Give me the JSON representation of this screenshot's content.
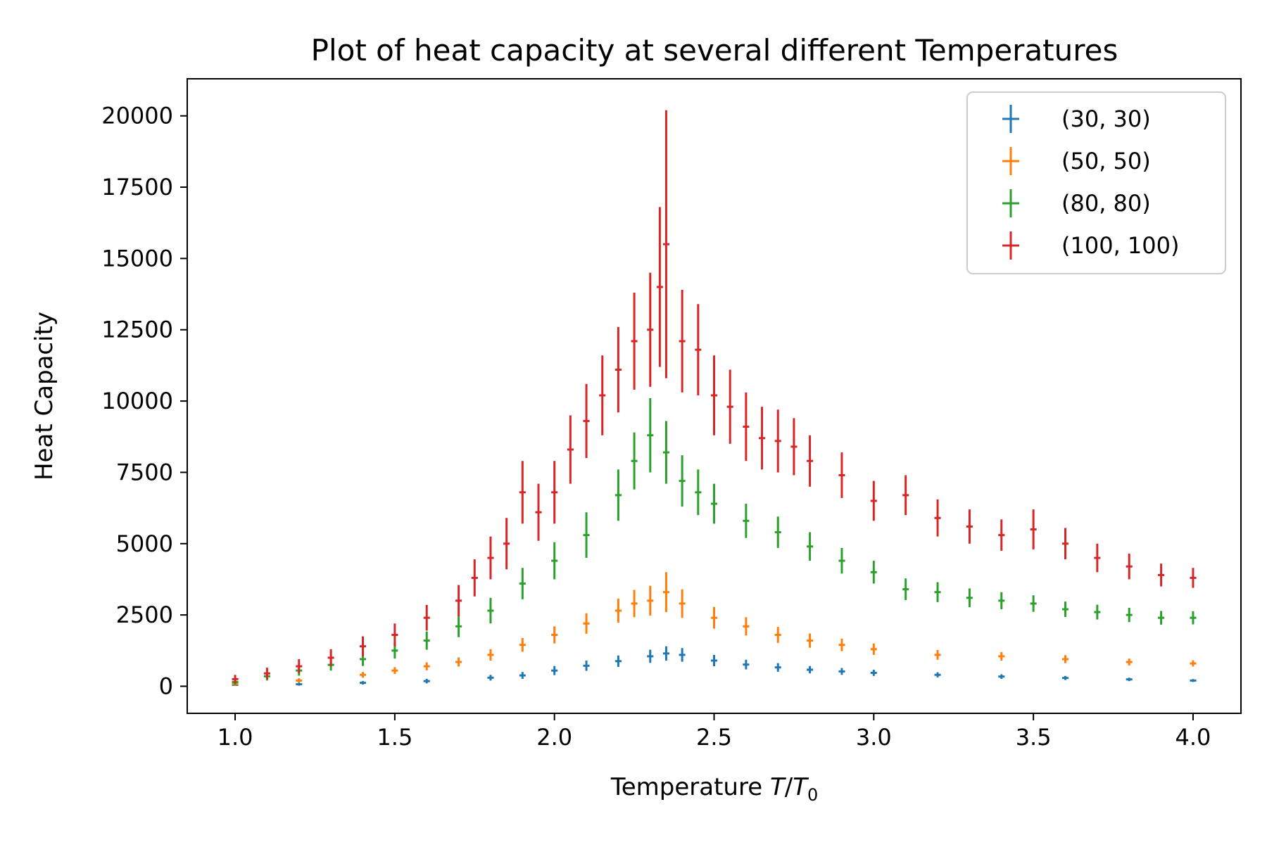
{
  "chart_data": {
    "type": "scatter",
    "title": "Plot of heat capacity at several different Temperatures",
    "xlabel": "Temperature T/T0",
    "xlabel_parts": {
      "prefix": "Temperature ",
      "num": "T",
      "slash": "/",
      "den": "T",
      "sub": "0"
    },
    "ylabel": "Heat Capacity",
    "xlim": [
      0.85,
      4.15
    ],
    "ylim": [
      -950,
      21300
    ],
    "x_ticks": [
      1.0,
      1.5,
      2.0,
      2.5,
      3.0,
      3.5,
      4.0
    ],
    "x_tick_labels": [
      "1.0",
      "1.5",
      "2.0",
      "2.5",
      "3.0",
      "3.5",
      "4.0"
    ],
    "y_ticks": [
      0,
      2500,
      5000,
      7500,
      10000,
      12500,
      15000,
      17500,
      20000
    ],
    "y_tick_labels": [
      "0",
      "2500",
      "5000",
      "7500",
      "10000",
      "12500",
      "15000",
      "17500",
      "20000"
    ],
    "grid": false,
    "legend_position": "top-right",
    "markers": "errorbar",
    "x_error": 0.01,
    "series": [
      {
        "name": "(30, 30)",
        "color": "#1f77b4",
        "x": [
          1.0,
          1.2,
          1.4,
          1.6,
          1.8,
          1.9,
          2.0,
          2.1,
          2.2,
          2.3,
          2.35,
          2.4,
          2.5,
          2.6,
          2.7,
          2.8,
          2.9,
          3.0,
          3.2,
          3.4,
          3.6,
          3.8,
          4.0
        ],
        "y": [
          50,
          70,
          120,
          180,
          300,
          380,
          550,
          720,
          880,
          1050,
          1150,
          1100,
          900,
          760,
          660,
          580,
          520,
          470,
          400,
          340,
          290,
          240,
          200
        ],
        "yerr": [
          40,
          50,
          60,
          80,
          100,
          120,
          160,
          180,
          200,
          230,
          250,
          240,
          200,
          170,
          150,
          130,
          120,
          110,
          90,
          80,
          70,
          60,
          50
        ]
      },
      {
        "name": "(50, 50)",
        "color": "#ff7f0e",
        "x": [
          1.0,
          1.2,
          1.4,
          1.5,
          1.6,
          1.7,
          1.8,
          1.9,
          2.0,
          2.1,
          2.2,
          2.25,
          2.3,
          2.35,
          2.4,
          2.5,
          2.6,
          2.7,
          2.8,
          2.9,
          3.0,
          3.2,
          3.4,
          3.6,
          3.8,
          4.0
        ],
        "y": [
          80,
          200,
          400,
          550,
          700,
          850,
          1100,
          1450,
          1800,
          2200,
          2650,
          2900,
          3000,
          3300,
          2900,
          2400,
          2100,
          1800,
          1600,
          1450,
          1300,
          1100,
          1050,
          950,
          850,
          800
        ],
        "yerr": [
          60,
          80,
          100,
          120,
          140,
          160,
          200,
          240,
          300,
          360,
          420,
          480,
          520,
          700,
          500,
          380,
          320,
          280,
          250,
          220,
          200,
          170,
          150,
          140,
          120,
          110
        ]
      },
      {
        "name": "(80, 80)",
        "color": "#2ca02c",
        "x": [
          1.0,
          1.1,
          1.2,
          1.3,
          1.4,
          1.5,
          1.6,
          1.7,
          1.8,
          1.9,
          2.0,
          2.1,
          2.2,
          2.25,
          2.3,
          2.35,
          2.4,
          2.45,
          2.5,
          2.6,
          2.7,
          2.8,
          2.9,
          3.0,
          3.1,
          3.2,
          3.3,
          3.4,
          3.5,
          3.6,
          3.7,
          3.8,
          3.9,
          4.0
        ],
        "y": [
          150,
          350,
          550,
          750,
          950,
          1250,
          1600,
          2100,
          2650,
          3600,
          4400,
          5300,
          6700,
          7900,
          8800,
          8200,
          7200,
          6800,
          6400,
          5800,
          5400,
          4900,
          4400,
          4000,
          3400,
          3300,
          3100,
          3000,
          2900,
          2700,
          2600,
          2500,
          2400,
          2400
        ],
        "yerr": [
          100,
          150,
          180,
          200,
          240,
          280,
          320,
          380,
          450,
          550,
          650,
          800,
          900,
          1000,
          1300,
          1100,
          900,
          800,
          700,
          600,
          550,
          500,
          450,
          400,
          380,
          350,
          330,
          300,
          290,
          270,
          260,
          250,
          240,
          230
        ]
      },
      {
        "name": "(100, 100)",
        "color": "#d62728",
        "x": [
          1.0,
          1.1,
          1.2,
          1.3,
          1.4,
          1.5,
          1.6,
          1.7,
          1.75,
          1.8,
          1.85,
          1.9,
          1.95,
          2.0,
          2.05,
          2.1,
          2.15,
          2.2,
          2.25,
          2.3,
          2.33,
          2.35,
          2.4,
          2.45,
          2.5,
          2.55,
          2.6,
          2.65,
          2.7,
          2.75,
          2.8,
          2.9,
          3.0,
          3.1,
          3.2,
          3.3,
          3.4,
          3.5,
          3.6,
          3.7,
          3.8,
          3.9,
          4.0
        ],
        "y": [
          250,
          450,
          700,
          1000,
          1400,
          1800,
          2400,
          3000,
          3800,
          4500,
          5000,
          6800,
          6100,
          6800,
          8300,
          9300,
          10200,
          11100,
          12100,
          12500,
          14000,
          15500,
          12100,
          11800,
          10200,
          9800,
          9100,
          8700,
          8600,
          8400,
          7900,
          7400,
          6500,
          6700,
          5900,
          5600,
          5300,
          5500,
          5000,
          4500,
          4200,
          3900,
          3800
        ],
        "yerr": [
          150,
          200,
          250,
          300,
          350,
          400,
          450,
          550,
          650,
          750,
          900,
          1100,
          1000,
          1100,
          1200,
          1300,
          1400,
          1500,
          1700,
          2000,
          2800,
          4700,
          1800,
          1600,
          1400,
          1300,
          1200,
          1100,
          1100,
          1000,
          900,
          800,
          700,
          700,
          650,
          600,
          550,
          700,
          550,
          500,
          450,
          400,
          350
        ]
      }
    ]
  }
}
